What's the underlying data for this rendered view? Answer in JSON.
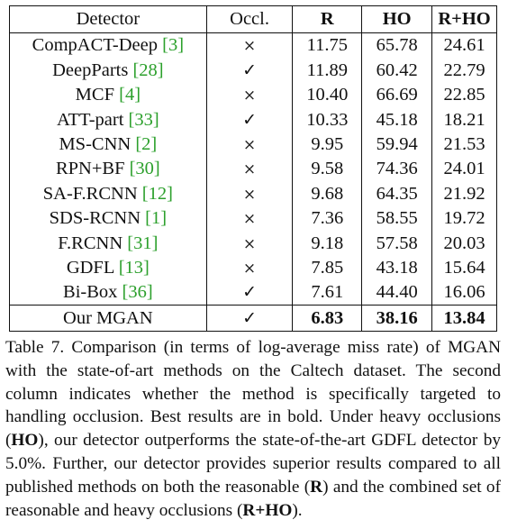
{
  "table": {
    "headers": [
      "Detector",
      "Occl.",
      "R",
      "HO",
      "R+HO"
    ],
    "rows": [
      {
        "name": "CompACT-Deep",
        "cite": "3",
        "occl": "×",
        "r": "11.75",
        "ho": "65.78",
        "rho": "24.61"
      },
      {
        "name": "DeepParts",
        "cite": "28",
        "occl": "✓",
        "r": "11.89",
        "ho": "60.42",
        "rho": "22.79"
      },
      {
        "name": "MCF",
        "cite": "4",
        "occl": "×",
        "r": "10.40",
        "ho": "66.69",
        "rho": "22.85"
      },
      {
        "name": "ATT-part",
        "cite": "33",
        "occl": "✓",
        "r": "10.33",
        "ho": "45.18",
        "rho": "18.21"
      },
      {
        "name": "MS-CNN",
        "cite": "2",
        "occl": "×",
        "r": "9.95",
        "ho": "59.94",
        "rho": "21.53"
      },
      {
        "name": "RPN+BF",
        "cite": "30",
        "occl": "×",
        "r": "9.58",
        "ho": "74.36",
        "rho": "24.01"
      },
      {
        "name": "SA-F.RCNN",
        "cite": "12",
        "occl": "×",
        "r": "9.68",
        "ho": "64.35",
        "rho": "21.92"
      },
      {
        "name": "SDS-RCNN",
        "cite": "1",
        "occl": "×",
        "r": "7.36",
        "ho": "58.55",
        "rho": "19.72"
      },
      {
        "name": "F.RCNN",
        "cite": "31",
        "occl": "×",
        "r": "9.18",
        "ho": "57.58",
        "rho": "20.03"
      },
      {
        "name": "GDFL",
        "cite": "13",
        "occl": "×",
        "r": "7.85",
        "ho": "43.18",
        "rho": "15.64"
      },
      {
        "name": "Bi-Box",
        "cite": "36",
        "occl": "✓",
        "r": "7.61",
        "ho": "44.40",
        "rho": "16.06"
      }
    ],
    "ours": {
      "name": "Our MGAN",
      "occl": "✓",
      "r": "6.83",
      "ho": "38.16",
      "rho": "13.84"
    }
  },
  "caption": {
    "p1": "Table 7. Comparison (in terms of log-average miss rate) of MGAN with the state-of-art methods on the Caltech dataset. The second column indicates whether the method is specifically targeted to handling occlusion. Best results are in bold. Under heavy occlusions (",
    "b1": "HO",
    "p2": "), our detector outperforms the state-of-the-art GDFL detector by 5.0%. Further, our detector provides superior results compared to all published methods on both the reasonable (",
    "b2": "R",
    "p3": ") and the combined set of reasonable and heavy occlusions (",
    "b3": "R+HO",
    "p4": ")."
  }
}
